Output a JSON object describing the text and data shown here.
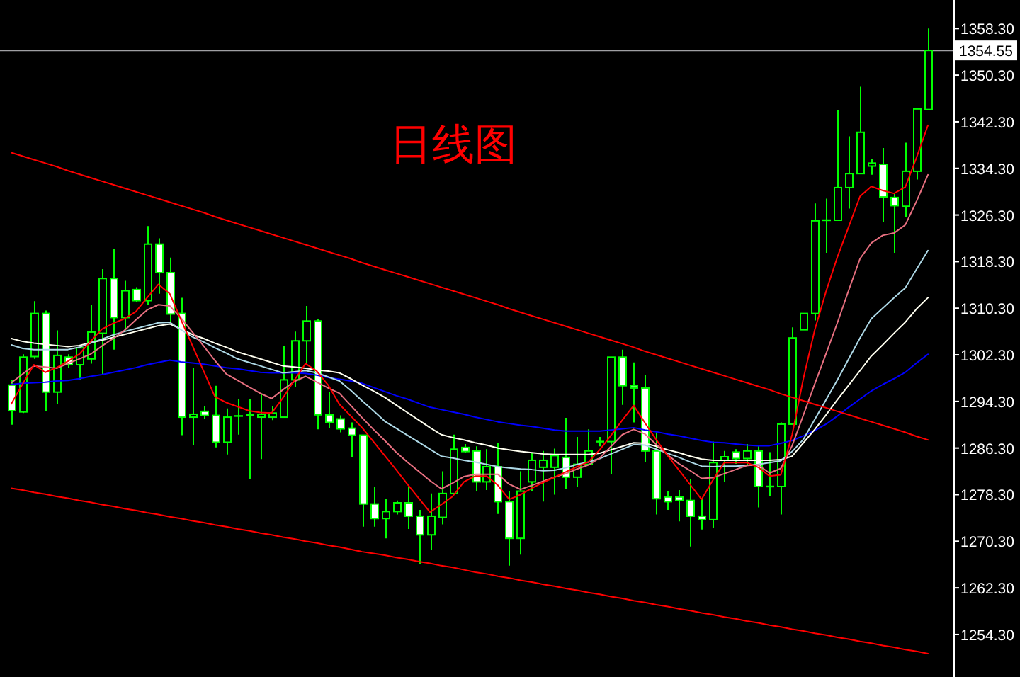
{
  "chart_data": {
    "type": "candlestick",
    "title": "日线图",
    "categories": [
      null,
      null,
      null,
      null,
      null,
      null,
      null,
      null,
      null,
      null,
      null,
      null,
      null,
      null,
      null,
      null,
      null,
      null,
      null,
      null,
      null,
      null,
      null,
      null,
      null,
      null,
      null,
      null,
      null,
      null,
      null,
      null,
      null,
      null,
      null,
      null,
      null,
      null,
      null,
      null,
      null,
      null,
      null,
      null,
      null,
      null,
      null,
      null,
      null,
      null,
      null,
      null,
      null,
      null,
      null,
      null,
      null,
      null,
      null,
      null,
      null,
      null,
      null,
      null,
      null,
      null,
      null,
      null,
      null,
      null,
      null,
      null,
      null,
      null,
      null,
      null,
      null,
      null,
      null,
      null,
      null,
      null
    ],
    "ohlc": [
      [
        1297.1,
        1298.0,
        1290.3,
        1292.7
      ],
      [
        1292.5,
        1302.4,
        1292.3,
        1301.9
      ],
      [
        1302.0,
        1311.5,
        1301.6,
        1309.4
      ],
      [
        1309.4,
        1309.9,
        1292.7,
        1295.9
      ],
      [
        1295.9,
        1306.5,
        1293.9,
        1302.2
      ],
      [
        1301.9,
        1302.4,
        1300.0,
        1300.6
      ],
      [
        1300.6,
        1303.6,
        1298.0,
        1303.5
      ],
      [
        1301.6,
        1310.9,
        1300.8,
        1306.2
      ],
      [
        1306.0,
        1317.0,
        1298.8,
        1315.4
      ],
      [
        1315.4,
        1320.4,
        1303.2,
        1308.7
      ],
      [
        1308.7,
        1315.0,
        1306.5,
        1313.3
      ],
      [
        1313.5,
        1313.9,
        1311.3,
        1311.6
      ],
      [
        1311.6,
        1324.4,
        1310.9,
        1321.3
      ],
      [
        1321.3,
        1322.3,
        1312.8,
        1316.4
      ],
      [
        1316.4,
        1319.0,
        1307.7,
        1309.3
      ],
      [
        1309.4,
        1312.1,
        1288.5,
        1291.6
      ],
      [
        1291.6,
        1300.0,
        1286.8,
        1292.1
      ],
      [
        1292.6,
        1293.5,
        1291.3,
        1291.9
      ],
      [
        1291.9,
        1297.0,
        1286.4,
        1287.3
      ],
      [
        1287.3,
        1293.1,
        1285.2,
        1291.6
      ],
      [
        1291.8,
        1294.7,
        1288.6,
        1291.8
      ],
      [
        1292.0,
        1294.7,
        1280.9,
        1292.0
      ],
      [
        1291.6,
        1295.5,
        1284.4,
        1292.1
      ],
      [
        1291.6,
        1293.5,
        1291.1,
        1292.3
      ],
      [
        1291.6,
        1303.8,
        1291.6,
        1298.0
      ],
      [
        1298.0,
        1306.3,
        1296.8,
        1304.7
      ],
      [
        1304.7,
        1310.7,
        1300.8,
        1308.1
      ],
      [
        1308.1,
        1308.5,
        1289.5,
        1292.0
      ],
      [
        1292.0,
        1295.9,
        1289.8,
        1290.7
      ],
      [
        1291.3,
        1291.9,
        1289.0,
        1289.6
      ],
      [
        1289.7,
        1290.7,
        1284.7,
        1288.5
      ],
      [
        1288.5,
        1288.5,
        1272.8,
        1276.7
      ],
      [
        1276.7,
        1279.7,
        1272.8,
        1274.2
      ],
      [
        1274.2,
        1277.5,
        1270.8,
        1275.4
      ],
      [
        1275.4,
        1277.3,
        1274.9,
        1276.9
      ],
      [
        1276.9,
        1279.7,
        1272.4,
        1274.6
      ],
      [
        1274.6,
        1275.7,
        1266.4,
        1271.4
      ],
      [
        1271.4,
        1278.5,
        1268.8,
        1274.6
      ],
      [
        1274.4,
        1282.3,
        1273.2,
        1278.5
      ],
      [
        1278.5,
        1288.6,
        1278.5,
        1286.1
      ],
      [
        1286.4,
        1287.0,
        1285.4,
        1285.7
      ],
      [
        1285.8,
        1286.6,
        1278.9,
        1280.5
      ],
      [
        1280.5,
        1286.1,
        1279.1,
        1283.1
      ],
      [
        1283.1,
        1287.2,
        1275.0,
        1277.1
      ],
      [
        1277.1,
        1278.9,
        1266.1,
        1270.8
      ],
      [
        1270.8,
        1282.3,
        1268.0,
        1278.9
      ],
      [
        1280.5,
        1285.4,
        1278.9,
        1284.2
      ],
      [
        1283.0,
        1285.8,
        1277.1,
        1284.2
      ],
      [
        1283.0,
        1286.2,
        1278.3,
        1285.0
      ],
      [
        1284.7,
        1291.5,
        1279.2,
        1281.3
      ],
      [
        1281.3,
        1288.2,
        1279.6,
        1283.5
      ],
      [
        1283.5,
        1289.5,
        1283.5,
        1285.8
      ],
      [
        1287.4,
        1288.2,
        1286.6,
        1287.4
      ],
      [
        1287.4,
        1301.9,
        1281.8,
        1301.9
      ],
      [
        1301.9,
        1303.2,
        1293.7,
        1297.0
      ],
      [
        1297.0,
        1301.0,
        1290.7,
        1296.6
      ],
      [
        1296.6,
        1298.8,
        1283.9,
        1285.8
      ],
      [
        1285.8,
        1289.0,
        1274.9,
        1277.6
      ],
      [
        1277.9,
        1278.9,
        1275.7,
        1277.1
      ],
      [
        1277.9,
        1279.1,
        1273.7,
        1277.3
      ],
      [
        1277.3,
        1281.0,
        1269.4,
        1274.6
      ],
      [
        1274.6,
        1277.7,
        1272.3,
        1274.0
      ],
      [
        1274.0,
        1287.4,
        1272.6,
        1283.8
      ],
      [
        1284.2,
        1285.8,
        1280.5,
        1284.8
      ],
      [
        1285.6,
        1286.1,
        1283.6,
        1284.5
      ],
      [
        1284.5,
        1287.0,
        1283.4,
        1285.8
      ],
      [
        1285.8,
        1286.6,
        1276.1,
        1279.7
      ],
      [
        1279.7,
        1285.6,
        1278.1,
        1279.7
      ],
      [
        1279.7,
        1290.7,
        1274.9,
        1290.4
      ],
      [
        1290.4,
        1307.0,
        1290.3,
        1305.2
      ],
      [
        1306.6,
        1309.4,
        1306.6,
        1309.4
      ],
      [
        1309.4,
        1328.3,
        1308.2,
        1325.3
      ],
      [
        1325.4,
        1329.1,
        1319.8,
        1325.4
      ],
      [
        1325.4,
        1344.3,
        1325.4,
        1331.0
      ],
      [
        1331.0,
        1339.8,
        1327.4,
        1333.4
      ],
      [
        1333.4,
        1348.3,
        1333.3,
        1340.5
      ],
      [
        1334.7,
        1335.9,
        1333.2,
        1335.2
      ],
      [
        1335.0,
        1337.8,
        1325.1,
        1329.4
      ],
      [
        1329.3,
        1329.9,
        1319.8,
        1327.9
      ],
      [
        1327.8,
        1338.7,
        1325.9,
        1333.8
      ],
      [
        1333.8,
        1344.5,
        1332.4,
        1344.5
      ],
      [
        1344.4,
        1358.3,
        1344.4,
        1354.55
      ]
    ],
    "series": [
      {
        "type": "line",
        "color": "#0000ff",
        "values": [
          1297.2,
          1297.4,
          1297.5,
          1297.6,
          1297.8,
          1297.9,
          1298.2,
          1298.6,
          1298.9,
          1299.3,
          1299.7,
          1300.1,
          1300.6,
          1301.0,
          1301.4,
          1301.1,
          1300.9,
          1300.7,
          1300.4,
          1300.1,
          1299.9,
          1299.6,
          1299.3,
          1299.2,
          1299.2,
          1299.2,
          1299.1,
          1298.8,
          1298.4,
          1298.1,
          1297.8,
          1297.4,
          1296.7,
          1296.0,
          1295.3,
          1294.7,
          1294.0,
          1293.3,
          1292.9,
          1292.5,
          1292.1,
          1291.6,
          1291.2,
          1290.8,
          1290.5,
          1290.2,
          1290.0,
          1289.7,
          1289.4,
          1289.2,
          1289.2,
          1289.2,
          1289.2,
          1289.4,
          1289.6,
          1289.8,
          1289.4,
          1289.1,
          1288.7,
          1288.4,
          1288.0,
          1287.6,
          1287.3,
          1287.2,
          1287.0,
          1286.8,
          1286.7,
          1286.7,
          1287.1,
          1287.6,
          1288.4,
          1289.3,
          1290.4,
          1291.8,
          1293.3,
          1294.7,
          1296.1,
          1297.2,
          1298.2,
          1299.3,
          1300.9,
          1302.4
        ]
      },
      {
        "type": "line",
        "color": "#fffff0",
        "values": [
          1305.1,
          1304.6,
          1304.3,
          1304.1,
          1303.9,
          1303.7,
          1303.9,
          1304.4,
          1304.8,
          1305.3,
          1305.8,
          1306.3,
          1306.8,
          1307.3,
          1307.6,
          1306.7,
          1305.8,
          1305.1,
          1304.3,
          1303.6,
          1302.8,
          1302.2,
          1301.6,
          1301.0,
          1300.4,
          1300.2,
          1300.0,
          1299.7,
          1299.5,
          1299.2,
          1298.2,
          1297.1,
          1296.1,
          1295.0,
          1293.7,
          1292.4,
          1291.1,
          1289.8,
          1288.6,
          1288.1,
          1287.7,
          1287.2,
          1286.8,
          1286.3,
          1286.0,
          1285.7,
          1285.5,
          1285.3,
          1285.2,
          1285.2,
          1285.2,
          1285.2,
          1285.4,
          1286.0,
          1286.6,
          1287.2,
          1287.1,
          1286.6,
          1286.0,
          1285.5,
          1284.9,
          1284.4,
          1284.2,
          1284.2,
          1284.2,
          1284.2,
          1284.2,
          1284.2,
          1284.3,
          1284.9,
          1287.2,
          1289.5,
          1292.0,
          1294.6,
          1297.1,
          1299.6,
          1302.1,
          1304.0,
          1306.0,
          1307.9,
          1310.2,
          1312.1
        ]
      },
      {
        "type": "line",
        "color": "#add8e6",
        "values": [
          1304.0,
          1303.4,
          1303.2,
          1303.2,
          1303.2,
          1303.2,
          1303.6,
          1304.3,
          1305.0,
          1305.7,
          1306.3,
          1306.8,
          1307.3,
          1307.8,
          1307.9,
          1306.6,
          1305.4,
          1304.5,
          1303.5,
          1302.6,
          1301.6,
          1301.0,
          1300.4,
          1299.8,
          1299.2,
          1299.4,
          1299.6,
          1299.2,
          1298.5,
          1297.8,
          1296.2,
          1294.4,
          1292.7,
          1290.9,
          1289.7,
          1288.5,
          1287.3,
          1286.1,
          1284.9,
          1284.6,
          1284.2,
          1283.9,
          1283.5,
          1283.1,
          1282.9,
          1282.7,
          1282.6,
          1282.4,
          1282.5,
          1282.9,
          1283.5,
          1283.9,
          1284.5,
          1285.3,
          1286.1,
          1286.9,
          1286.8,
          1286.1,
          1285.4,
          1284.7,
          1283.9,
          1283.2,
          1283.1,
          1283.2,
          1283.2,
          1283.3,
          1283.5,
          1283.8,
          1284.1,
          1285.7,
          1287.8,
          1291.2,
          1294.6,
          1298.0,
          1301.6,
          1305.2,
          1308.5,
          1310.3,
          1312.1,
          1313.8,
          1317.0,
          1320.2
        ]
      },
      {
        "type": "line",
        "color": "#e87080",
        "values": [
          1297.5,
          1299.0,
          1300.4,
          1300.2,
          1300.0,
          1300.8,
          1301.6,
          1302.4,
          1303.8,
          1305.1,
          1306.5,
          1308.3,
          1310.0,
          1310.9,
          1310.7,
          1308.6,
          1306.2,
          1303.8,
          1301.3,
          1299.0,
          1297.9,
          1296.8,
          1295.7,
          1294.8,
          1296.3,
          1297.7,
          1298.6,
          1297.6,
          1296.6,
          1295.7,
          1293.6,
          1291.5,
          1289.5,
          1287.6,
          1285.6,
          1283.9,
          1282.3,
          1280.7,
          1279.3,
          1280.3,
          1281.4,
          1281.8,
          1281.8,
          1281.8,
          1280.1,
          1279.2,
          1279.9,
          1280.6,
          1281.3,
          1281.9,
          1282.7,
          1283.4,
          1284.6,
          1286.6,
          1288.6,
          1289.5,
          1288.7,
          1286.9,
          1285.1,
          1283.6,
          1282.4,
          1281.1,
          1281.2,
          1281.9,
          1282.6,
          1283.3,
          1283.4,
          1282.0,
          1282.8,
          1286.7,
          1292.0,
          1297.3,
          1302.5,
          1307.8,
          1313.4,
          1318.8,
          1321.5,
          1322.8,
          1323.2,
          1324.6,
          1328.7,
          1333.2
        ]
      },
      {
        "type": "line",
        "color": "#ff0000",
        "values": [
          1293.9,
          1297.3,
          1300.6,
          1299.3,
          1300.1,
          1301.2,
          1302.4,
          1304.6,
          1306.7,
          1307.7,
          1308.5,
          1309.7,
          1312.1,
          1314.4,
          1312.8,
          1308.3,
          1303.9,
          1299.5,
          1295.1,
          1294.1,
          1293.4,
          1292.7,
          1292.4,
          1292.3,
          1294.9,
          1297.9,
          1300.8,
          1299.5,
          1297.1,
          1293.8,
          1291.8,
          1289.8,
          1287.4,
          1285.0,
          1282.6,
          1280.1,
          1277.7,
          1275.3,
          1276.6,
          1278.0,
          1280.5,
          1281.5,
          1281.5,
          1279.9,
          1277.5,
          1278.3,
          1279.4,
          1280.4,
          1281.3,
          1282.2,
          1283.1,
          1283.9,
          1286.0,
          1288.5,
          1291.1,
          1293.6,
          1290.6,
          1287.7,
          1285.0,
          1282.5,
          1280.0,
          1277.5,
          1280.8,
          1283.8,
          1283.8,
          1283.8,
          1283.0,
          1281.5,
          1281.7,
          1288.6,
          1298.3,
          1306.6,
          1313.2,
          1319.1,
          1324.3,
          1329.5,
          1331.2,
          1330.5,
          1330.0,
          1331.1,
          1336.2,
          1341.7
        ]
      },
      {
        "type": "line",
        "color": "#ff0000",
        "values": [
          1337.0,
          1336.4,
          1335.8,
          1335.2,
          1334.6,
          1333.9,
          1333.3,
          1332.7,
          1332.1,
          1331.5,
          1330.9,
          1330.3,
          1329.7,
          1329.1,
          1328.5,
          1327.9,
          1327.3,
          1326.7,
          1326.0,
          1325.4,
          1324.8,
          1324.2,
          1323.6,
          1323.0,
          1322.4,
          1321.8,
          1321.2,
          1320.6,
          1320.0,
          1319.4,
          1318.8,
          1318.1,
          1317.5,
          1316.9,
          1316.3,
          1315.7,
          1315.1,
          1314.5,
          1313.9,
          1313.3,
          1312.7,
          1312.1,
          1311.5,
          1310.9,
          1310.2,
          1309.6,
          1309.0,
          1308.4,
          1307.8,
          1307.2,
          1306.6,
          1306.0,
          1305.4,
          1304.8,
          1304.2,
          1303.6,
          1302.9,
          1302.3,
          1301.7,
          1301.1,
          1300.5,
          1299.9,
          1299.3,
          1298.7,
          1298.1,
          1297.5,
          1296.9,
          1296.3,
          1295.6,
          1295.0,
          1294.4,
          1293.8,
          1293.2,
          1292.6,
          1292.0,
          1291.4,
          1290.8,
          1290.2,
          1289.6,
          1289.0,
          1288.3,
          1287.7
        ]
      },
      {
        "type": "line",
        "color": "#ff0000",
        "values": [
          1279.4,
          1279.1,
          1278.7,
          1278.4,
          1278.0,
          1277.7,
          1277.3,
          1277.0,
          1276.6,
          1276.3,
          1275.9,
          1275.6,
          1275.2,
          1274.9,
          1274.5,
          1274.2,
          1273.8,
          1273.5,
          1273.1,
          1272.8,
          1272.4,
          1272.1,
          1271.7,
          1271.4,
          1271.0,
          1270.7,
          1270.3,
          1270.0,
          1269.6,
          1269.3,
          1268.9,
          1268.5,
          1268.2,
          1267.9,
          1267.5,
          1267.2,
          1266.8,
          1266.5,
          1266.1,
          1265.8,
          1265.4,
          1265.0,
          1264.7,
          1264.3,
          1264.0,
          1263.6,
          1263.3,
          1262.9,
          1262.6,
          1262.2,
          1261.9,
          1261.5,
          1261.2,
          1260.8,
          1260.5,
          1260.1,
          1259.8,
          1259.4,
          1259.1,
          1258.7,
          1258.4,
          1258.0,
          1257.7,
          1257.3,
          1257.0,
          1256.6,
          1256.3,
          1255.9,
          1255.6,
          1255.2,
          1254.9,
          1254.5,
          1254.2,
          1253.8,
          1253.5,
          1253.1,
          1252.8,
          1252.4,
          1252.1,
          1251.7,
          1251.4,
          1251.0
        ]
      }
    ],
    "ylim": [
      1247.0,
      1363.2
    ],
    "yticks": [
      {
        "value": 1358.3,
        "label": "1358.30"
      },
      {
        "value": 1350.3,
        "label": "1350.30"
      },
      {
        "value": 1342.3,
        "label": "1342.30"
      },
      {
        "value": 1334.3,
        "label": "1334.30"
      },
      {
        "value": 1326.3,
        "label": "1326.30"
      },
      {
        "value": 1318.3,
        "label": "1318.30"
      },
      {
        "value": 1310.3,
        "label": "1310.30"
      },
      {
        "value": 1302.3,
        "label": "1302.30"
      },
      {
        "value": 1294.3,
        "label": "1294.30"
      },
      {
        "value": 1286.3,
        "label": "1286.30"
      },
      {
        "value": 1278.3,
        "label": "1278.30"
      },
      {
        "value": 1270.3,
        "label": "1270.30"
      },
      {
        "value": 1262.3,
        "label": "1262.30"
      },
      {
        "value": 1254.3,
        "label": "1254.30"
      }
    ],
    "ref_lines": [
      {
        "axis": "y",
        "value": 1354.55,
        "label": "1354.55",
        "color": "#a0a0a4"
      }
    ],
    "tick_labels": "y"
  }
}
